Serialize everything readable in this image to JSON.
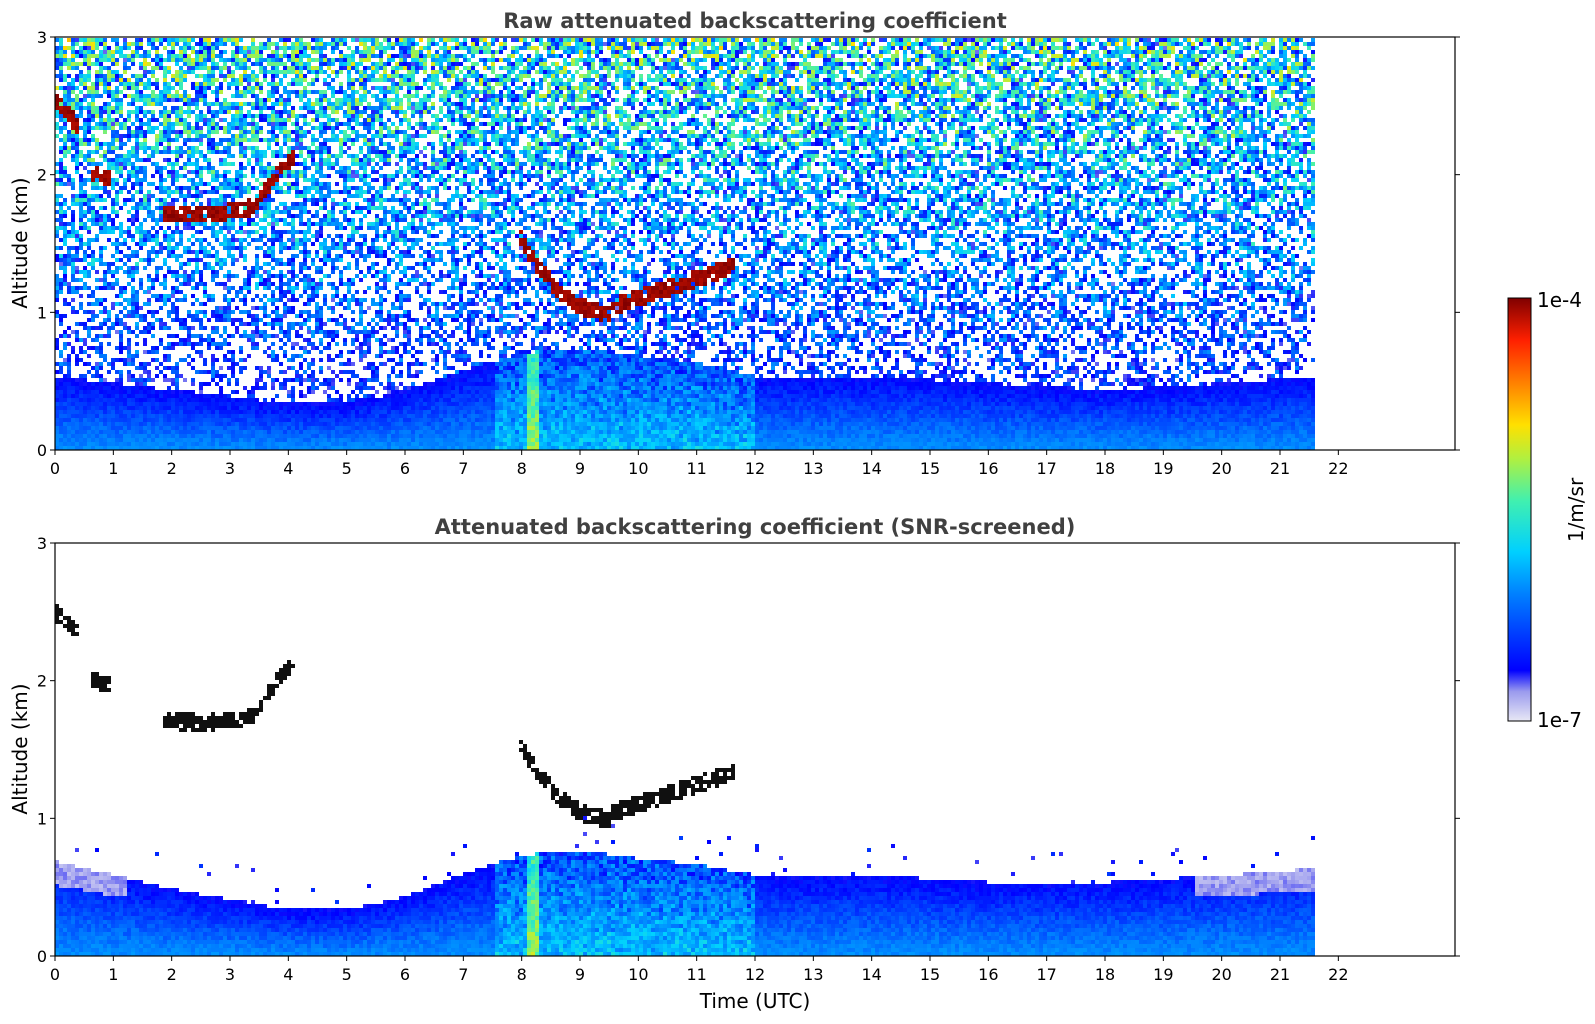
{
  "chart_data": [
    {
      "type": "heatmap",
      "title": "Raw attenuated backscattering coefficient",
      "ylabel": "Altitude (km)",
      "xlabel": "",
      "xlim": [
        0,
        24
      ],
      "ylim": [
        0,
        3
      ],
      "xticks": [
        "0",
        "1",
        "2",
        "3",
        "4",
        "5",
        "6",
        "7",
        "8",
        "9",
        "10",
        "11",
        "12",
        "13",
        "14",
        "15",
        "16",
        "17",
        "18",
        "19",
        "20",
        "21",
        "22"
      ],
      "yticks": [
        "0",
        "1",
        "2",
        "3"
      ],
      "data_end_time": 21.6,
      "noise_floor": "high",
      "cloud_layers": [
        {
          "t0": 0.0,
          "t1": 0.4,
          "alt": [
            2.55,
            2.45,
            2.35
          ]
        },
        {
          "t0": 0.6,
          "t1": 0.95,
          "alt": [
            2.02,
            2.0,
            1.98
          ]
        },
        {
          "t0": 1.8,
          "t1": 3.4,
          "alt": [
            1.72,
            1.72,
            1.78
          ]
        },
        {
          "t0": 3.4,
          "t1": 4.1,
          "alt": [
            1.8,
            2.0,
            2.15
          ]
        },
        {
          "t0": 7.95,
          "t1": 8.5,
          "alt": [
            1.55,
            1.35,
            1.25
          ]
        },
        {
          "t0": 8.5,
          "t1": 9.5,
          "alt": [
            1.2,
            1.05,
            1.0
          ]
        },
        {
          "t0": 9.5,
          "t1": 11.6,
          "alt": [
            1.05,
            1.2,
            1.35
          ]
        }
      ],
      "boundary_layer_top": [
        {
          "t": 0,
          "h": 0.55
        },
        {
          "t": 2,
          "h": 0.45
        },
        {
          "t": 4,
          "h": 0.35
        },
        {
          "t": 5,
          "h": 0.35
        },
        {
          "t": 6,
          "h": 0.45
        },
        {
          "t": 7,
          "h": 0.6
        },
        {
          "t": 8,
          "h": 0.72
        },
        {
          "t": 9,
          "h": 0.75
        },
        {
          "t": 10,
          "h": 0.7
        },
        {
          "t": 11,
          "h": 0.65
        },
        {
          "t": 12,
          "h": 0.55
        },
        {
          "t": 14,
          "h": 0.55
        },
        {
          "t": 16,
          "h": 0.5
        },
        {
          "t": 18,
          "h": 0.45
        },
        {
          "t": 20,
          "h": 0.5
        },
        {
          "t": 21.6,
          "h": 0.55
        }
      ]
    },
    {
      "type": "heatmap",
      "title": "Attenuated backscattering coefficient (SNR-screened)",
      "ylabel": "Altitude (km)",
      "xlabel": "Time (UTC)",
      "xlim": [
        0,
        24
      ],
      "ylim": [
        0,
        3
      ],
      "xticks": [
        "0",
        "1",
        "2",
        "3",
        "4",
        "5",
        "6",
        "7",
        "8",
        "9",
        "10",
        "11",
        "12",
        "13",
        "14",
        "15",
        "16",
        "17",
        "18",
        "19",
        "20",
        "21",
        "22"
      ],
      "yticks": [
        "0",
        "1",
        "2",
        "3"
      ],
      "data_end_time": 21.6,
      "noise_floor": "screened",
      "cloud_layers": [
        {
          "t0": 0.0,
          "t1": 0.4,
          "alt": [
            2.5,
            2.42,
            2.35
          ]
        },
        {
          "t0": 0.6,
          "t1": 0.95,
          "alt": [
            2.02,
            2.0,
            1.98
          ]
        },
        {
          "t0": 1.8,
          "t1": 3.4,
          "alt": [
            1.72,
            1.71,
            1.76
          ]
        },
        {
          "t0": 3.4,
          "t1": 4.1,
          "alt": [
            1.8,
            2.0,
            2.15
          ]
        },
        {
          "t0": 7.95,
          "t1": 8.5,
          "alt": [
            1.55,
            1.35,
            1.25
          ]
        },
        {
          "t0": 8.5,
          "t1": 9.5,
          "alt": [
            1.2,
            1.05,
            1.0
          ]
        },
        {
          "t0": 9.5,
          "t1": 11.6,
          "alt": [
            1.05,
            1.2,
            1.35
          ]
        }
      ],
      "boundary_layer_top": [
        {
          "t": 0,
          "h": 0.7
        },
        {
          "t": 1,
          "h": 0.6
        },
        {
          "t": 2,
          "h": 0.5
        },
        {
          "t": 4,
          "h": 0.35
        },
        {
          "t": 5,
          "h": 0.35
        },
        {
          "t": 6,
          "h": 0.45
        },
        {
          "t": 7,
          "h": 0.62
        },
        {
          "t": 8,
          "h": 0.75
        },
        {
          "t": 9,
          "h": 0.78
        },
        {
          "t": 10,
          "h": 0.72
        },
        {
          "t": 11,
          "h": 0.68
        },
        {
          "t": 12,
          "h": 0.6
        },
        {
          "t": 14,
          "h": 0.6
        },
        {
          "t": 16,
          "h": 0.55
        },
        {
          "t": 18,
          "h": 0.55
        },
        {
          "t": 20,
          "h": 0.6
        },
        {
          "t": 21.6,
          "h": 0.65
        }
      ]
    }
  ],
  "colorbar": {
    "label": "1/m/sr",
    "max_label": "1e-4",
    "min_label": "1e-7",
    "scale": "log",
    "range": [
      1e-07,
      0.0001
    ],
    "colormap": [
      "#e8e8f5",
      "#9a9aee",
      "#0000ff",
      "#0080ff",
      "#00d0ff",
      "#40f0b0",
      "#b0f040",
      "#ffe000",
      "#ff8000",
      "#ff2000",
      "#800000"
    ]
  }
}
